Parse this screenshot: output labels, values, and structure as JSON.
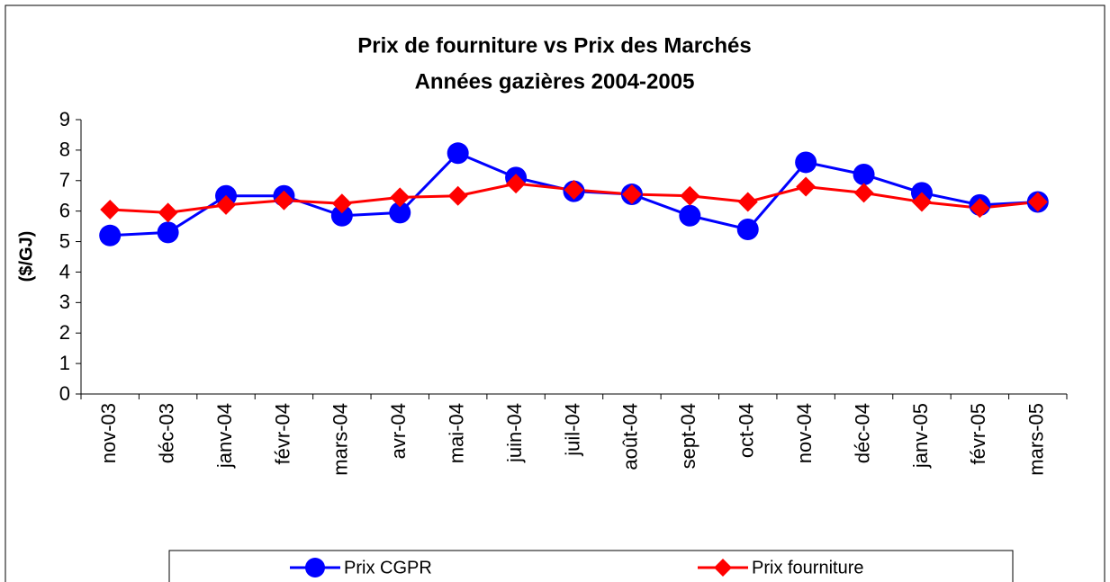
{
  "chart_data": {
    "type": "line",
    "title": "Prix de fourniture vs Prix des Marchés",
    "subtitle": "Années gazières 2004-2005",
    "y_label": "($/GJ)",
    "categories": [
      "nov-03",
      "déc-03",
      "janv-04",
      "févr-04",
      "mars-04",
      "avr-04",
      "mai-04",
      "juin-04",
      "juil-04",
      "août-04",
      "sept-04",
      "oct-04",
      "nov-04",
      "déc-04",
      "janv-05",
      "févr-05",
      "mars-05"
    ],
    "series": [
      {
        "name": "Prix CGPR",
        "color": "#0000ff",
        "marker": "circle",
        "values": [
          5.2,
          5.3,
          6.5,
          6.5,
          5.85,
          5.95,
          7.9,
          7.1,
          6.65,
          6.55,
          5.85,
          5.4,
          7.6,
          7.2,
          6.6,
          6.2,
          6.3
        ]
      },
      {
        "name": "Prix fourniture",
        "color": "#ff0000",
        "marker": "diamond",
        "values": [
          6.05,
          5.95,
          6.2,
          6.35,
          6.25,
          6.45,
          6.5,
          6.9,
          6.7,
          6.55,
          6.5,
          6.3,
          6.8,
          6.6,
          6.3,
          6.1,
          6.3
        ]
      }
    ],
    "ylim": [
      0,
      9
    ],
    "yticks": [
      0,
      1,
      2,
      3,
      4,
      5,
      6,
      7,
      8,
      9
    ],
    "grid": false,
    "legend": "bottom"
  }
}
